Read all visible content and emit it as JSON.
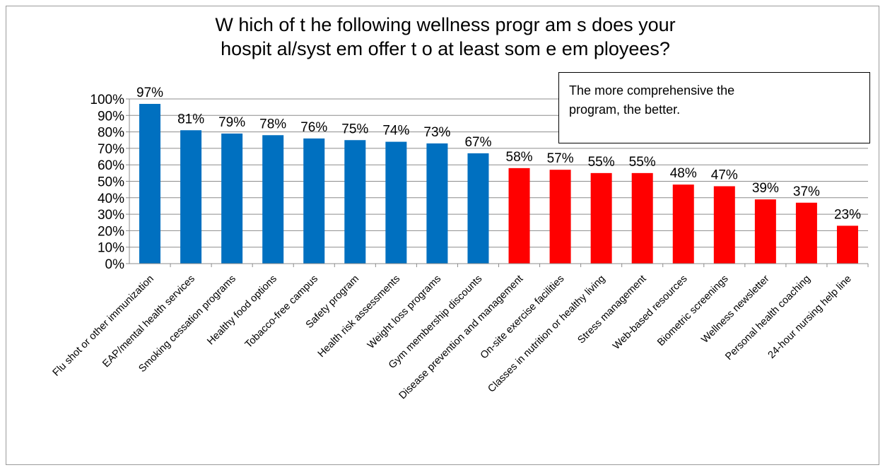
{
  "chart_data": {
    "type": "bar",
    "title_lines": [
      "W hich of t he following wellness progr am s does your",
      "hospit al/syst em offer t o at least som e em ployees?"
    ],
    "categories": [
      "Flu shot or other immunization",
      "EAP/mental health services",
      "Smoking cessation programs",
      "Healthy food options",
      "Tobacco-free campus",
      "Safety program",
      "Health risk assessments",
      "Weight loss programs",
      "Gym membership discounts",
      "Disease prevention and management",
      "On-site exercise facilities",
      "Classes in nutrition or healthy living",
      "Stress management",
      "Web-based resources",
      "Biometric screenings",
      "Wellness newsletter",
      "Personal health coaching",
      "24-hour nursing help line"
    ],
    "values": [
      97,
      81,
      79,
      78,
      76,
      75,
      74,
      73,
      67,
      58,
      57,
      55,
      55,
      48,
      47,
      39,
      37,
      23
    ],
    "data_labels": [
      "97%",
      "81%",
      "79%",
      "78%",
      "76%",
      "75%",
      "74%",
      "73%",
      "67%",
      "58%",
      "57%",
      "55%",
      "55%",
      "48%",
      "47%",
      "39%",
      "37%",
      "23%"
    ],
    "bar_colors": [
      "#0070C0",
      "#0070C0",
      "#0070C0",
      "#0070C0",
      "#0070C0",
      "#0070C0",
      "#0070C0",
      "#0070C0",
      "#0070C0",
      "#FF0000",
      "#FF0000",
      "#FF0000",
      "#FF0000",
      "#FF0000",
      "#FF0000",
      "#FF0000",
      "#FF0000",
      "#FF0000"
    ],
    "ylim": [
      0,
      100
    ],
    "y_ticks": [
      "0%",
      "10%",
      "20%",
      "30%",
      "40%",
      "50%",
      "60%",
      "70%",
      "80%",
      "90%",
      "100%"
    ],
    "grid": true,
    "xlabel": "",
    "ylabel": "",
    "callout_lines": [
      "The more comprehensive the",
      "program, the better."
    ]
  }
}
